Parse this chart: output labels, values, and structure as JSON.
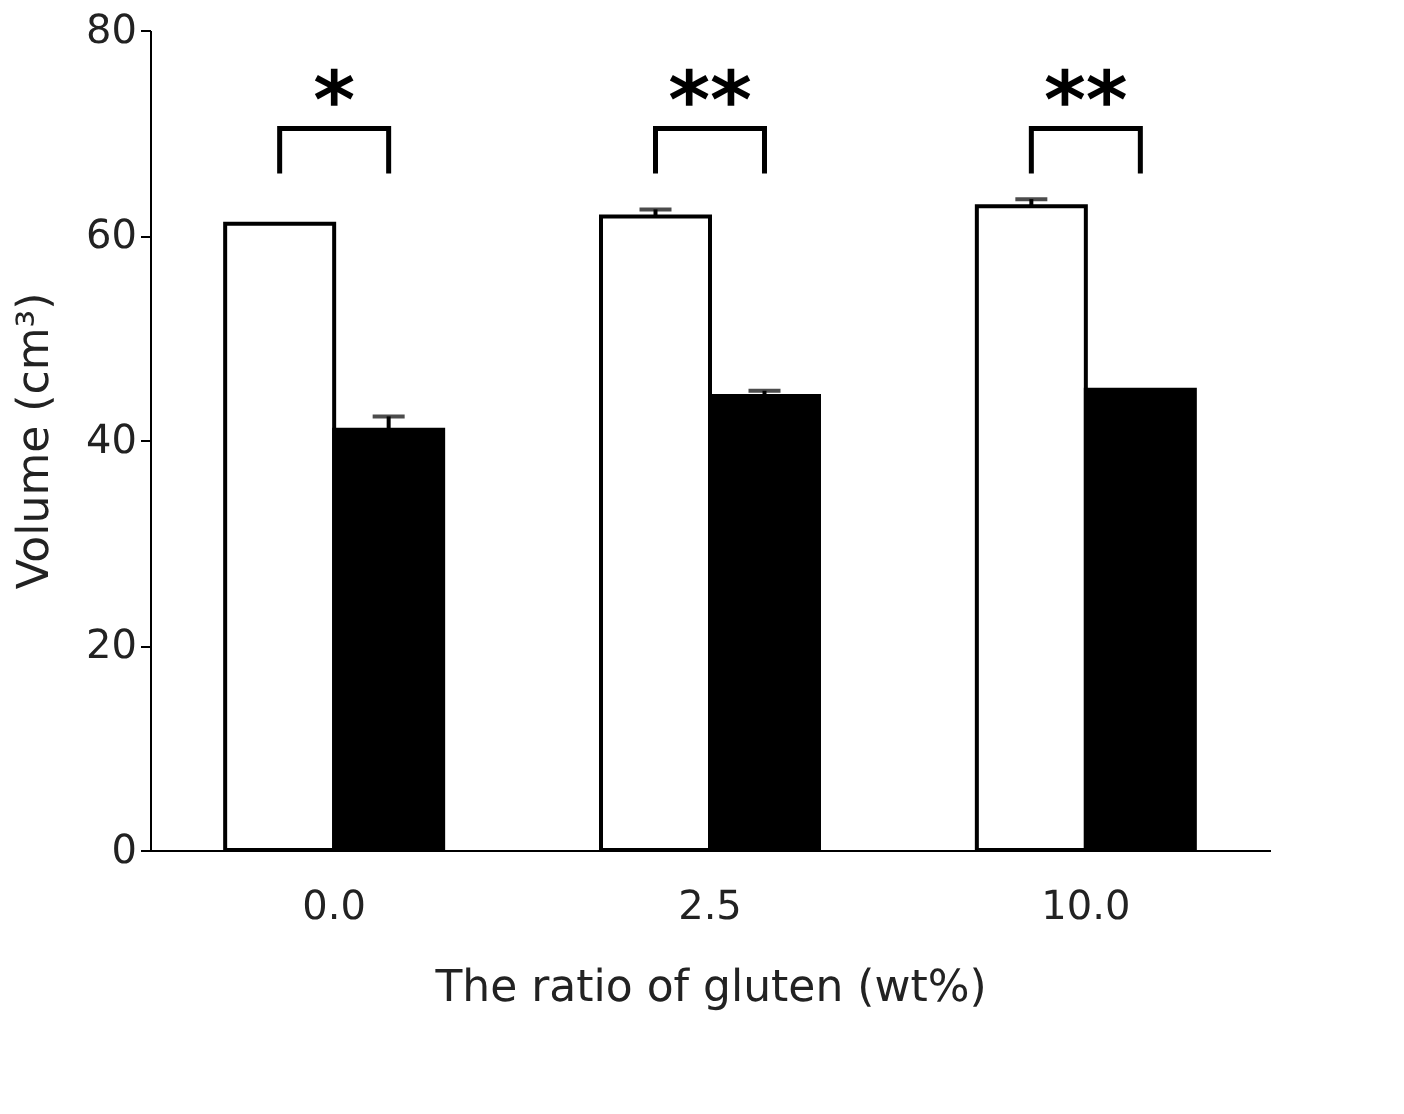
{
  "chart_data": {
    "type": "bar",
    "xlabel": "The ratio of gluten (wt%)",
    "ylabel": "Volume (cm³)",
    "categories": [
      "0.0",
      "2.5",
      "10.0"
    ],
    "series": [
      {
        "color": "#ffffff",
        "values": [
          61.1,
          61.8,
          62.8
        ],
        "errors": [
          null,
          0.7,
          0.7
        ]
      },
      {
        "color": "#000000",
        "values": [
          41.0,
          44.3,
          44.9
        ],
        "errors": [
          1.3,
          0.5,
          null
        ]
      }
    ],
    "ylim": [
      0,
      80
    ],
    "yticks": [
      0,
      20,
      40,
      60,
      80
    ],
    "grid": false,
    "legend": false,
    "annotations": [
      "*",
      "**",
      "**"
    ]
  }
}
